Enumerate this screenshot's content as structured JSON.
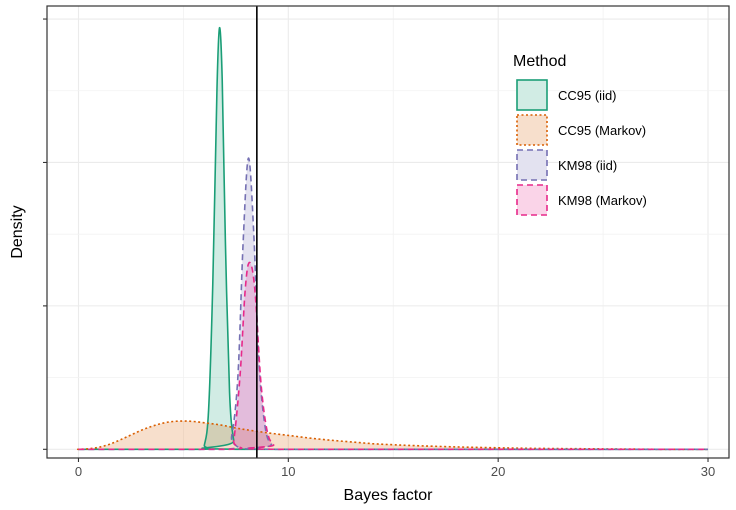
{
  "chart_data": {
    "type": "area",
    "xlabel": "Bayes factor",
    "ylabel": "Density",
    "xlim": [
      -1.5,
      31
    ],
    "ylim": [
      -0.02,
      1.02
    ],
    "x_ticks": [
      0,
      10,
      20,
      30
    ],
    "x_tick_labels": [
      "0",
      "10",
      "20",
      "30"
    ],
    "y_ticks": [
      0,
      0.33,
      0.66,
      0.99
    ],
    "y_tick_labels_shown": false,
    "x_minor_gridlines": [
      5,
      15,
      25
    ],
    "grid": true,
    "vline": 8.5,
    "legend": {
      "title": "Method",
      "position": "top-right",
      "entries": [
        "CC95 (iid)",
        "CC95 (Markov)",
        "KM98 (iid)",
        "KM98 (Markov)"
      ]
    },
    "series": [
      {
        "name": "CC95 (iid)",
        "color": "#1b9e77",
        "dash": "solid",
        "points": [
          [
            5.8,
            0
          ],
          [
            6.0,
            0.01
          ],
          [
            6.2,
            0.09
          ],
          [
            6.4,
            0.38
          ],
          [
            6.6,
            0.83
          ],
          [
            6.72,
            0.97
          ],
          [
            6.85,
            0.85
          ],
          [
            7.0,
            0.48
          ],
          [
            7.2,
            0.13
          ],
          [
            7.4,
            0.02
          ],
          [
            7.6,
            0
          ],
          [
            30,
            0
          ]
        ]
      },
      {
        "name": "CC95 (Markov)",
        "color": "#d95f02",
        "dash": "dotted",
        "points": [
          [
            0,
            0
          ],
          [
            0.5,
            0.0015
          ],
          [
            1,
            0.005
          ],
          [
            1.5,
            0.012
          ],
          [
            2,
            0.022
          ],
          [
            2.5,
            0.033
          ],
          [
            3,
            0.044
          ],
          [
            3.5,
            0.053
          ],
          [
            4,
            0.06
          ],
          [
            4.5,
            0.064
          ],
          [
            5,
            0.065
          ],
          [
            5.5,
            0.064
          ],
          [
            6,
            0.061
          ],
          [
            6.5,
            0.058
          ],
          [
            7,
            0.054
          ],
          [
            7.5,
            0.049
          ],
          [
            8,
            0.045
          ],
          [
            9,
            0.038
          ],
          [
            10,
            0.032
          ],
          [
            11,
            0.026
          ],
          [
            12,
            0.021
          ],
          [
            13,
            0.017
          ],
          [
            14,
            0.013
          ],
          [
            15,
            0.0105
          ],
          [
            16,
            0.0085
          ],
          [
            18,
            0.0055
          ],
          [
            20,
            0.0035
          ],
          [
            22,
            0.002
          ],
          [
            25,
            0.001
          ],
          [
            27,
            0.0003
          ],
          [
            28,
            0
          ],
          [
            30,
            0
          ]
        ]
      },
      {
        "name": "KM98 (iid)",
        "color": "#7570b3",
        "dash": "dashed",
        "points": [
          [
            7.0,
            0
          ],
          [
            7.3,
            0.03
          ],
          [
            7.6,
            0.17
          ],
          [
            7.85,
            0.48
          ],
          [
            8.1,
            0.67
          ],
          [
            8.35,
            0.5
          ],
          [
            8.6,
            0.2
          ],
          [
            8.9,
            0.05
          ],
          [
            9.2,
            0.01
          ],
          [
            9.5,
            0
          ],
          [
            30,
            0
          ]
        ]
      },
      {
        "name": "KM98 (Markov)",
        "color": "#e7298a",
        "dash": "dashed",
        "points": [
          [
            7.2,
            0
          ],
          [
            7.4,
            0.02
          ],
          [
            7.7,
            0.17
          ],
          [
            7.95,
            0.37
          ],
          [
            8.15,
            0.43
          ],
          [
            8.4,
            0.37
          ],
          [
            8.7,
            0.15
          ],
          [
            9.0,
            0.04
          ],
          [
            9.3,
            0.01
          ],
          [
            9.6,
            0
          ],
          [
            30,
            0
          ]
        ]
      }
    ]
  }
}
